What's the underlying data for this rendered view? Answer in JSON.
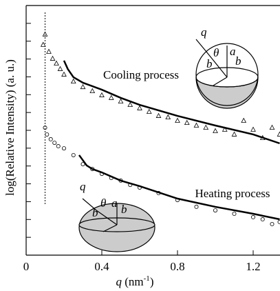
{
  "chart_data": {
    "type": "scatter",
    "ylabel": "log(Relative Intensity) (a. u.)",
    "xlabel_parts": [
      "q",
      " (nm",
      "-1",
      ")"
    ],
    "xlim": [
      0,
      1.34
    ],
    "ylim": [
      0,
      14
    ],
    "xticks": [
      0,
      0.4,
      0.8,
      1.2
    ],
    "yticks": [
      1,
      2,
      3,
      4,
      5,
      6,
      7,
      8,
      9,
      10,
      11,
      12,
      13,
      14
    ],
    "vline_x": 0.1,
    "annotations": [
      "Cooling process",
      "Heating process"
    ],
    "insets": [
      {
        "labels": [
          "q",
          "θ",
          "a",
          "b",
          "b"
        ]
      },
      {
        "labels": [
          "q",
          "θ",
          "a",
          "b",
          "b"
        ]
      }
    ],
    "series": [
      {
        "marker": "triangle",
        "color": "#000000",
        "x": [
          0.09,
          0.1,
          0.12,
          0.14,
          0.16,
          0.18,
          0.2,
          0.25,
          0.3,
          0.35,
          0.4,
          0.45,
          0.5,
          0.55,
          0.6,
          0.65,
          0.7,
          0.75,
          0.8,
          0.85,
          0.9,
          0.95,
          1.0,
          1.05,
          1.1,
          1.15,
          1.2,
          1.25,
          1.3,
          1.34
        ],
        "values": [
          11.8,
          12.38,
          11.41,
          11.02,
          10.75,
          10.44,
          10.13,
          9.74,
          9.43,
          9.2,
          8.97,
          8.82,
          8.62,
          8.43,
          8.24,
          8.04,
          7.81,
          7.73,
          7.54,
          7.42,
          7.27,
          7.15,
          6.96,
          7.04,
          6.77,
          7.54,
          7.04,
          6.57,
          7.15,
          6.77
        ]
      },
      {
        "marker": "line",
        "color": "#000000",
        "x": [
          0.2,
          0.22,
          0.25,
          0.3,
          0.4,
          0.5,
          0.6,
          0.8,
          1.0,
          1.2,
          1.34
        ],
        "values": [
          10.91,
          10.44,
          9.98,
          9.67,
          9.28,
          8.82,
          8.43,
          7.81,
          7.27,
          6.77,
          6.27
        ]
      },
      {
        "marker": "circle",
        "color": "#000000",
        "x": [
          0.1,
          0.11,
          0.13,
          0.15,
          0.17,
          0.2,
          0.25,
          0.3,
          0.35,
          0.4,
          0.45,
          0.5,
          0.55,
          0.6,
          0.7,
          0.8,
          0.9,
          1.0,
          1.1,
          1.2,
          1.25,
          1.3,
          1.34
        ],
        "values": [
          7.15,
          6.77,
          6.5,
          6.3,
          6.11,
          5.99,
          5.61,
          5.1,
          4.83,
          4.56,
          4.33,
          4.18,
          3.94,
          3.79,
          3.48,
          3.09,
          2.71,
          2.51,
          2.32,
          2.13,
          2.01,
          1.74,
          1.86
        ]
      },
      {
        "marker": "line",
        "color": "#000000",
        "x": [
          0.28,
          0.32,
          0.35,
          0.4,
          0.5,
          0.6,
          0.8,
          1.0,
          1.2,
          1.34
        ],
        "values": [
          5.61,
          5.03,
          4.83,
          4.64,
          4.18,
          3.87,
          3.17,
          2.71,
          2.32,
          2.01
        ]
      }
    ]
  }
}
